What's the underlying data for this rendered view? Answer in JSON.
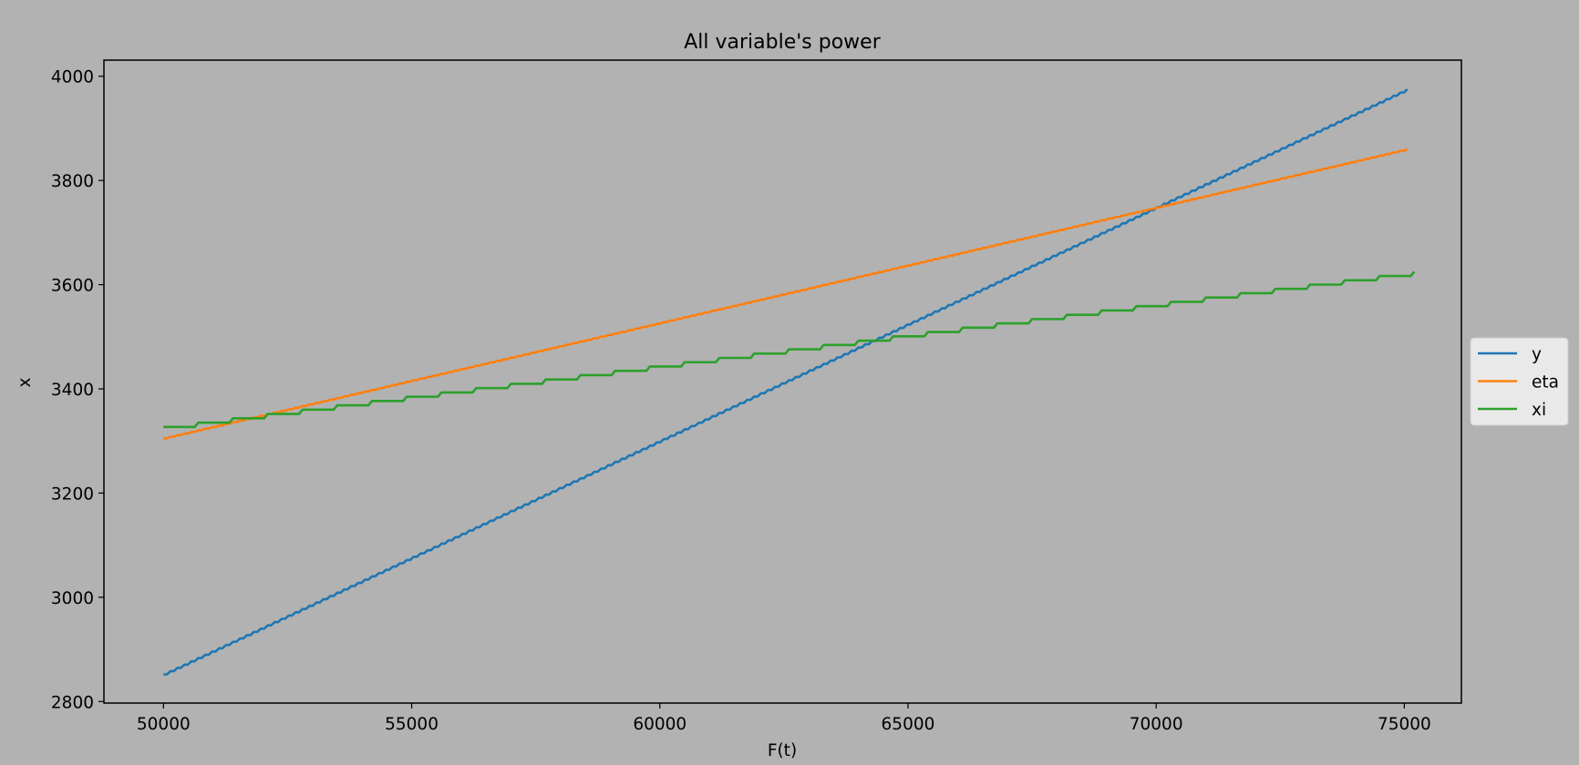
{
  "chart_data": {
    "type": "line",
    "title": "All variable's power",
    "xlabel": "F(t)",
    "ylabel": "x",
    "xlim": [
      48800,
      76150
    ],
    "ylim": [
      2797,
      4031
    ],
    "xticks": [
      50000,
      55000,
      60000,
      65000,
      70000,
      75000
    ],
    "yticks": [
      2800,
      3000,
      3200,
      3400,
      3600,
      3800,
      4000
    ],
    "xtick_labels": [
      "50000",
      "55000",
      "60000",
      "65000",
      "70000",
      "75000"
    ],
    "ytick_labels": [
      "2800",
      "3000",
      "3200",
      "3400",
      "3600",
      "3800",
      "4000"
    ],
    "grid": false,
    "legend_position": "center-right outside plot",
    "series": [
      {
        "name": "y",
        "color": "#1f77b4",
        "x": [
          50000,
          75000
        ],
        "y": [
          2852,
          3975
        ],
        "step": 140,
        "step_shape": 0.5
      },
      {
        "name": "eta",
        "color": "#ff7f0e",
        "x": [
          50000,
          75000
        ],
        "y": [
          3305,
          3860
        ],
        "step": 140,
        "step_shape": 0.5
      },
      {
        "name": "xi",
        "color": "#2ca02c",
        "x": [
          50000,
          75000
        ],
        "y": [
          3327,
          3625
        ],
        "step": 700,
        "step_shape": 0.9
      }
    ]
  }
}
